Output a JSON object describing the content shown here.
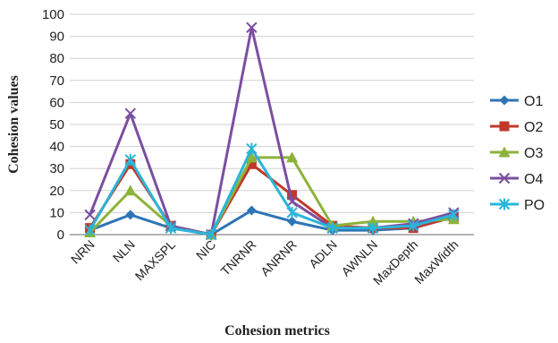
{
  "chart_data": {
    "type": "line",
    "ylabel": "Cohesion values",
    "xlabel": "Cohesion metrics",
    "ylim": [
      0,
      100
    ],
    "ytick_step": 10,
    "legend_position": "right",
    "categories": [
      "NRN",
      "NLN",
      "MAXSPL",
      "NIC",
      "TNRNR",
      "ANRNR",
      "ADLN",
      "AWNLN",
      "MaxDepth",
      "MaxWidth"
    ],
    "series": [
      {
        "name": "O1",
        "color": "#2E75B6",
        "marker": "diamond",
        "values": [
          2,
          9,
          3,
          0,
          11,
          6,
          2,
          2,
          3,
          8
        ]
      },
      {
        "name": "O2",
        "color": "#C0392B",
        "marker": "square",
        "values": [
          3,
          32,
          4,
          0,
          32,
          18,
          4,
          3,
          3,
          8
        ]
      },
      {
        "name": "O3",
        "color": "#8DB33A",
        "marker": "triangle",
        "values": [
          1,
          20,
          4,
          0,
          35,
          35,
          4,
          6,
          6,
          7
        ]
      },
      {
        "name": "O4",
        "color": "#7B4FA0",
        "marker": "x",
        "values": [
          9,
          55,
          4,
          0,
          94,
          15,
          3,
          3,
          5,
          10
        ]
      },
      {
        "name": "PO",
        "color": "#2BB5D8",
        "marker": "star",
        "values": [
          2,
          34,
          3,
          0,
          39,
          10,
          3,
          3,
          4,
          9
        ]
      }
    ]
  }
}
